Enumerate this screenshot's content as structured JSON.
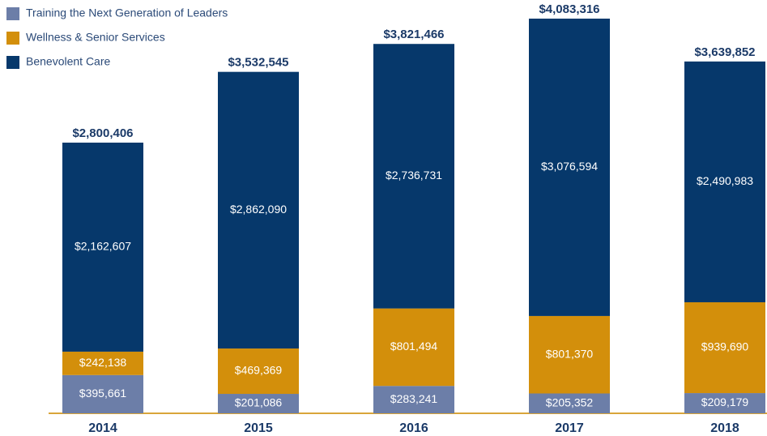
{
  "chart_data": {
    "type": "stacked_bar",
    "categories": [
      "2014",
      "2015",
      "2016",
      "2017",
      "2018"
    ],
    "series": [
      {
        "name": "Training the Next Generation of Leaders",
        "color": "#6c7ea8",
        "values": [
          395661,
          201086,
          283241,
          205352,
          209179
        ],
        "value_labels": [
          "$395,661",
          "$201,086",
          "$283,241",
          "$205,352",
          "$209,179"
        ]
      },
      {
        "name": "Wellness & Senior Services",
        "color": "#d38f0b",
        "values": [
          242138,
          469369,
          801494,
          801370,
          939690
        ],
        "value_labels": [
          "$242,138",
          "$469,369",
          "$801,494",
          "$801,370",
          "$939,690"
        ]
      },
      {
        "name": "Benevolent Care",
        "color": "#06386b",
        "values": [
          2162607,
          2862090,
          2736731,
          3076594,
          2490983
        ],
        "value_labels": [
          "$2,162,607",
          "$2,862,090",
          "$2,736,731",
          "$3,076,594",
          "$2,490,983"
        ]
      }
    ],
    "totals": [
      2800406,
      3532545,
      3821466,
      4083316,
      3639852
    ],
    "total_labels": [
      "$2,800,406",
      "$3,532,545",
      "$3,821,466",
      "$4,083,316",
      "$3,639,852"
    ],
    "ylim": [
      0,
      4276000
    ],
    "legend": "top-left"
  }
}
